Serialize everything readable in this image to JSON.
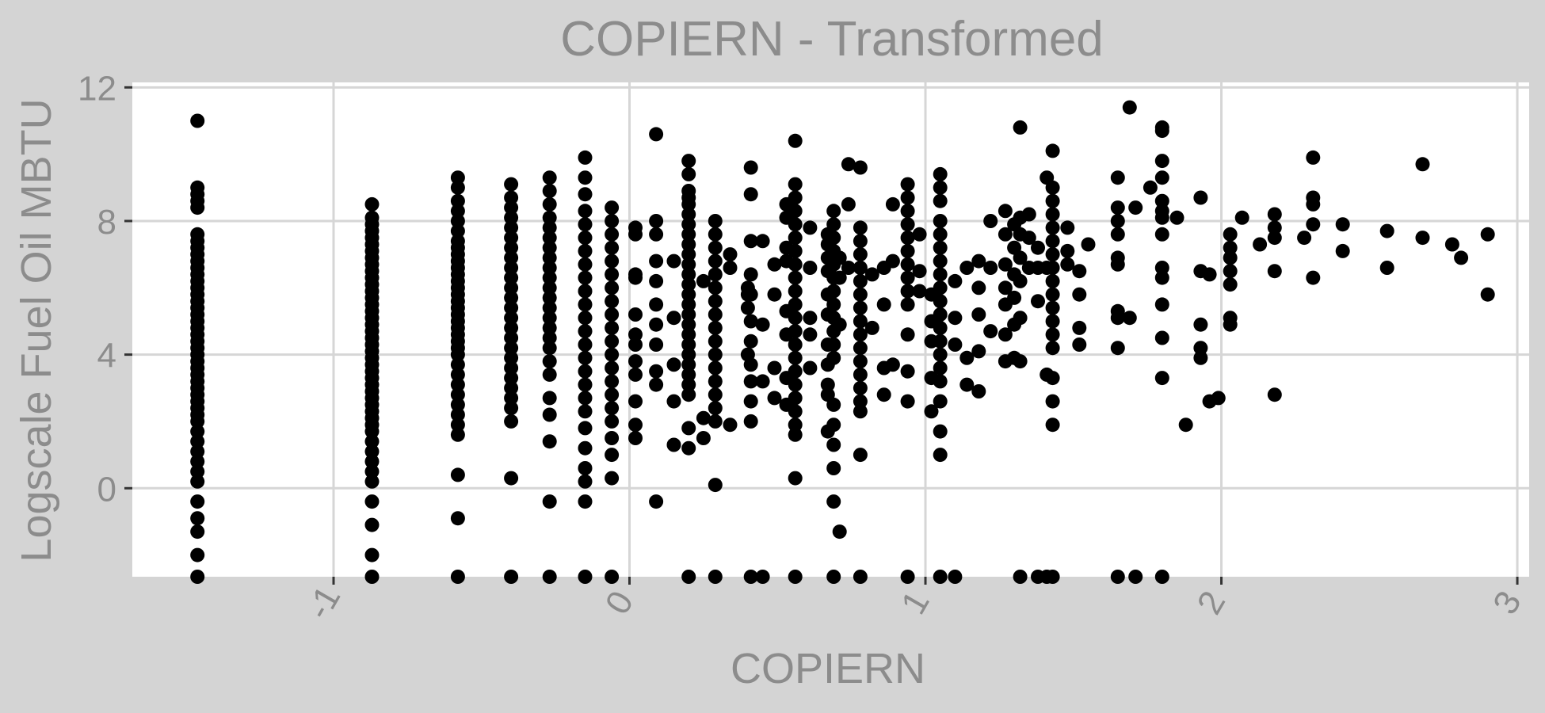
{
  "chart_data": {
    "type": "scatter",
    "title": "COPIERN - Transformed",
    "xlabel": "COPIERN",
    "ylabel": "Logscale Fuel Oil MBTU",
    "xlim": [
      -1.68,
      3.04
    ],
    "ylim": [
      -2.65,
      12.15
    ],
    "x_ticks": [
      -1,
      0,
      1,
      2,
      3
    ],
    "y_ticks": [
      0,
      4,
      8,
      12
    ],
    "grid": true,
    "legend": "none",
    "point_color": "#000000",
    "background_color": "#d4d4d4",
    "panel_color": "#ffffff",
    "series": [
      {
        "columns": [
          {
            "x": -1.46,
            "y": [
              11.0,
              9.0,
              8.8,
              8.6,
              8.4,
              7.6,
              7.4,
              7.2,
              7.0,
              6.8,
              6.6,
              6.4,
              6.2,
              6.0,
              5.8,
              5.6,
              5.4,
              5.2,
              5.0,
              4.8,
              4.6,
              4.4,
              4.2,
              4.0,
              3.8,
              3.6,
              3.4,
              3.2,
              3.0,
              2.8,
              2.6,
              2.4,
              2.2,
              2.0,
              1.7,
              1.4,
              1.1,
              0.8,
              0.5,
              0.2,
              -0.4,
              -0.9,
              -1.3,
              -2.0,
              -2.65
            ]
          },
          {
            "x": -0.87,
            "y": [
              8.5,
              8.1,
              7.9,
              7.7,
              7.5,
              7.3,
              7.1,
              6.9,
              6.7,
              6.5,
              6.3,
              6.1,
              5.9,
              5.7,
              5.5,
              5.3,
              5.1,
              4.9,
              4.7,
              4.5,
              4.3,
              4.1,
              3.9,
              3.7,
              3.5,
              3.3,
              3.1,
              2.9,
              2.7,
              2.5,
              2.3,
              2.1,
              1.9,
              1.7,
              1.4,
              1.1,
              0.8,
              0.5,
              0.2,
              -0.4,
              -1.1,
              -2.0,
              -2.65
            ]
          },
          {
            "x": -0.58,
            "y": [
              9.3,
              9.0,
              8.6,
              8.3,
              8.0,
              7.7,
              7.4,
              7.2,
              7.0,
              6.8,
              6.6,
              6.4,
              6.2,
              6.0,
              5.8,
              5.6,
              5.4,
              5.2,
              5.0,
              4.8,
              4.6,
              4.4,
              4.2,
              4.0,
              3.7,
              3.4,
              3.1,
              2.8,
              2.5,
              2.2,
              1.9,
              1.6,
              0.4,
              -0.9,
              -2.65
            ]
          },
          {
            "x": -0.4,
            "y": [
              9.1,
              8.7,
              8.4,
              8.1,
              7.8,
              7.5,
              7.2,
              6.9,
              6.6,
              6.3,
              6.0,
              5.7,
              5.4,
              5.1,
              4.8,
              4.5,
              4.2,
              3.9,
              3.6,
              3.3,
              3.0,
              2.7,
              2.4,
              2.0,
              0.3,
              -2.65
            ]
          },
          {
            "x": -0.27,
            "y": [
              9.3,
              8.9,
              8.5,
              8.1,
              7.8,
              7.5,
              7.2,
              6.9,
              6.6,
              6.3,
              6.0,
              5.7,
              5.4,
              5.1,
              4.8,
              4.5,
              4.2,
              3.8,
              3.4,
              2.7,
              2.2,
              1.4,
              -0.4,
              -2.65
            ]
          },
          {
            "x": -0.15,
            "y": [
              9.9,
              9.3,
              8.8,
              8.3,
              7.9,
              7.5,
              7.1,
              6.7,
              6.3,
              5.9,
              5.5,
              5.1,
              4.7,
              4.3,
              3.9,
              3.5,
              3.1,
              2.7,
              2.3,
              1.8,
              1.2,
              0.6,
              0.2,
              -0.4,
              -2.65
            ]
          },
          {
            "x": -0.06,
            "y": [
              8.4,
              8.0,
              7.6,
              7.2,
              6.8,
              6.4,
              6.0,
              5.6,
              5.2,
              4.8,
              4.4,
              4.0,
              3.6,
              3.2,
              2.8,
              2.4,
              2.0,
              1.5,
              1.0,
              0.3,
              -2.65
            ]
          },
          {
            "x": 0.02,
            "y": [
              7.8,
              7.6,
              6.4,
              6.3,
              5.2,
              4.6,
              4.3,
              3.8,
              3.4,
              2.6,
              1.9,
              1.5
            ]
          },
          {
            "x": 0.09,
            "y": [
              10.6,
              8.0,
              7.6,
              6.8,
              6.2,
              5.5,
              4.9,
              4.3,
              3.5,
              3.1,
              -0.4
            ]
          },
          {
            "x": 0.15,
            "y": [
              6.8,
              5.1,
              3.7,
              2.6,
              1.3
            ]
          },
          {
            "x": 0.2,
            "y": [
              9.8,
              9.4,
              8.9,
              8.7,
              8.5,
              8.2,
              7.9,
              7.6,
              7.3,
              7.0,
              6.7,
              6.4,
              6.1,
              5.8,
              5.5,
              5.2,
              4.9,
              4.6,
              4.3,
              4.0,
              3.7,
              3.4,
              3.1,
              2.8,
              1.8,
              1.2,
              -2.65
            ]
          },
          {
            "x": 0.25,
            "y": [
              6.2,
              2.1,
              1.5
            ]
          },
          {
            "x": 0.29,
            "y": [
              8.0,
              7.6,
              7.2,
              6.8,
              6.4,
              6.0,
              5.6,
              5.2,
              4.8,
              4.4,
              4.0,
              3.6,
              3.2,
              2.8,
              2.4,
              2.0,
              0.1,
              -2.65
            ]
          },
          {
            "x": 0.34,
            "y": [
              7.0,
              6.6,
              1.9
            ]
          },
          {
            "x": 0.4,
            "y": [
              6.0,
              5.4,
              4.0,
              5.8
            ]
          },
          {
            "x": 0.41,
            "y": [
              9.6,
              8.8,
              7.4,
              6.4,
              5.8,
              5.0,
              4.4,
              3.7,
              3.2,
              2.6,
              2.0,
              -2.65
            ]
          },
          {
            "x": 0.45,
            "y": [
              7.4,
              4.9,
              3.2,
              -2.65
            ]
          },
          {
            "x": 0.49,
            "y": [
              6.7,
              5.8,
              3.6,
              2.7
            ]
          },
          {
            "x": 0.53,
            "y": [
              8.5,
              8.1,
              7.2,
              6.8,
              5.3,
              4.6,
              3.3,
              2.5
            ]
          },
          {
            "x": 0.56,
            "y": [
              10.4,
              9.1,
              8.7,
              8.3,
              7.9,
              7.5,
              7.1,
              6.7,
              6.3,
              5.9,
              5.5,
              5.1,
              4.7,
              4.3,
              3.9,
              3.5,
              3.1,
              2.7,
              2.3,
              1.9,
              1.6,
              0.3,
              -2.65
            ]
          },
          {
            "x": 0.61,
            "y": [
              7.8,
              6.6,
              5.1,
              4.6,
              3.6
            ]
          },
          {
            "x": 0.67,
            "y": [
              7.6,
              7.3,
              6.9,
              6.5,
              5.8,
              5.2,
              4.3,
              3.7,
              3.1,
              2.8,
              1.7
            ]
          },
          {
            "x": 0.69,
            "y": [
              8.3,
              7.9,
              7.5,
              7.1,
              6.7,
              6.3,
              5.9,
              5.5,
              5.1,
              4.7,
              4.3,
              3.9,
              2.5,
              1.9,
              1.3,
              0.6,
              -0.4,
              -2.65
            ]
          },
          {
            "x": 0.71,
            "y": [
              6.9,
              6.3,
              4.9,
              -1.3
            ]
          },
          {
            "x": 0.74,
            "y": [
              9.7,
              8.5,
              6.6
            ]
          },
          {
            "x": 0.78,
            "y": [
              9.6,
              7.8,
              7.4,
              7.0,
              6.6,
              6.2,
              5.8,
              5.4,
              5.0,
              4.6,
              4.2,
              3.8,
              3.4,
              3.0,
              2.6,
              2.3,
              1.0,
              -2.65
            ]
          },
          {
            "x": 0.82,
            "y": [
              6.4,
              4.8
            ]
          },
          {
            "x": 0.86,
            "y": [
              6.6,
              5.5,
              3.6,
              2.8
            ]
          },
          {
            "x": 0.89,
            "y": [
              8.5,
              6.8,
              3.7
            ]
          },
          {
            "x": 0.94,
            "y": [
              9.1,
              8.7,
              8.3,
              7.9,
              7.5,
              7.1,
              6.7,
              6.3,
              5.9,
              5.5,
              4.6,
              3.5,
              2.6,
              -2.65
            ]
          },
          {
            "x": 0.98,
            "y": [
              7.6,
              6.5,
              5.9
            ]
          },
          {
            "x": 1.02,
            "y": [
              5.8,
              5.0,
              4.4,
              3.3,
              2.3
            ]
          },
          {
            "x": 1.05,
            "y": [
              9.4,
              9.0,
              8.6,
              8.0,
              7.6,
              7.2,
              6.8,
              6.4,
              6.0,
              5.6,
              5.2,
              4.8,
              4.4,
              4.0,
              3.6,
              3.2,
              2.6,
              1.7,
              1.0,
              -2.65
            ]
          },
          {
            "x": 1.1,
            "y": [
              6.2,
              5.1,
              4.3,
              -2.65
            ]
          },
          {
            "x": 1.14,
            "y": [
              6.6,
              3.9,
              3.1
            ]
          },
          {
            "x": 1.18,
            "y": [
              6.8,
              6.0,
              5.2,
              4.1,
              2.9
            ]
          },
          {
            "x": 1.22,
            "y": [
              8.0,
              6.6,
              4.7
            ]
          },
          {
            "x": 1.27,
            "y": [
              8.3,
              7.6,
              6.7,
              6.0,
              5.5,
              4.6,
              3.8
            ]
          },
          {
            "x": 1.3,
            "y": [
              7.9,
              7.2,
              6.4,
              5.7,
              4.9,
              3.9
            ]
          },
          {
            "x": 1.32,
            "y": [
              10.8,
              8.1,
              7.6,
              6.9,
              6.2,
              5.1,
              3.8,
              -2.65
            ]
          },
          {
            "x": 1.35,
            "y": [
              8.2,
              7.5,
              6.6
            ]
          },
          {
            "x": 1.38,
            "y": [
              6.6,
              5.6,
              7.2,
              -2.65
            ]
          },
          {
            "x": 1.41,
            "y": [
              9.3,
              6.6,
              3.4,
              -2.65
            ]
          },
          {
            "x": 1.43,
            "y": [
              10.1,
              9.0,
              8.6,
              8.2,
              7.8,
              7.4,
              7.0,
              6.6,
              6.2,
              5.8,
              5.4,
              5.0,
              4.6,
              4.2,
              3.3,
              2.6,
              1.9,
              -2.65
            ]
          },
          {
            "x": 1.48,
            "y": [
              7.8,
              7.1,
              6.7
            ]
          },
          {
            "x": 1.52,
            "y": [
              6.5,
              5.8,
              4.8,
              4.3
            ]
          },
          {
            "x": 1.55,
            "y": [
              7.3
            ]
          },
          {
            "x": 1.65,
            "y": [
              9.3,
              8.4,
              8.0,
              7.6,
              6.9,
              6.7,
              5.3,
              5.1,
              4.2,
              -2.65
            ]
          },
          {
            "x": 1.69,
            "y": [
              11.4,
              5.1
            ]
          },
          {
            "x": 1.71,
            "y": [
              8.4,
              -2.65
            ]
          },
          {
            "x": 1.76,
            "y": [
              9.0
            ]
          },
          {
            "x": 1.8,
            "y": [
              10.8,
              10.7,
              9.8,
              9.3,
              8.6,
              8.3,
              8.1,
              7.6,
              6.6,
              6.3,
              5.5,
              4.5,
              3.3,
              -2.65
            ]
          },
          {
            "x": 1.85,
            "y": [
              8.1
            ]
          },
          {
            "x": 1.88,
            "y": [
              1.9
            ]
          },
          {
            "x": 1.93,
            "y": [
              8.7,
              6.5,
              4.9,
              4.2,
              3.9
            ]
          },
          {
            "x": 1.96,
            "y": [
              6.4,
              2.6
            ]
          },
          {
            "x": 1.99,
            "y": [
              2.7
            ]
          },
          {
            "x": 2.03,
            "y": [
              7.6,
              7.2,
              6.9,
              6.5,
              6.1,
              5.1,
              4.9
            ]
          },
          {
            "x": 2.07,
            "y": [
              8.1
            ]
          },
          {
            "x": 2.13,
            "y": [
              7.3
            ]
          },
          {
            "x": 2.18,
            "y": [
              8.2,
              7.8,
              7.5,
              6.5,
              2.8
            ]
          },
          {
            "x": 2.28,
            "y": [
              7.5
            ]
          },
          {
            "x": 2.31,
            "y": [
              9.9,
              8.7,
              8.5,
              7.9,
              6.3
            ]
          },
          {
            "x": 2.41,
            "y": [
              7.9,
              7.1
            ]
          },
          {
            "x": 2.56,
            "y": [
              7.7,
              6.6
            ]
          },
          {
            "x": 2.68,
            "y": [
              9.7,
              7.5
            ]
          },
          {
            "x": 2.78,
            "y": [
              7.3
            ]
          },
          {
            "x": 2.81,
            "y": [
              6.9
            ]
          },
          {
            "x": 2.9,
            "y": [
              7.6,
              5.8
            ]
          }
        ]
      }
    ]
  }
}
